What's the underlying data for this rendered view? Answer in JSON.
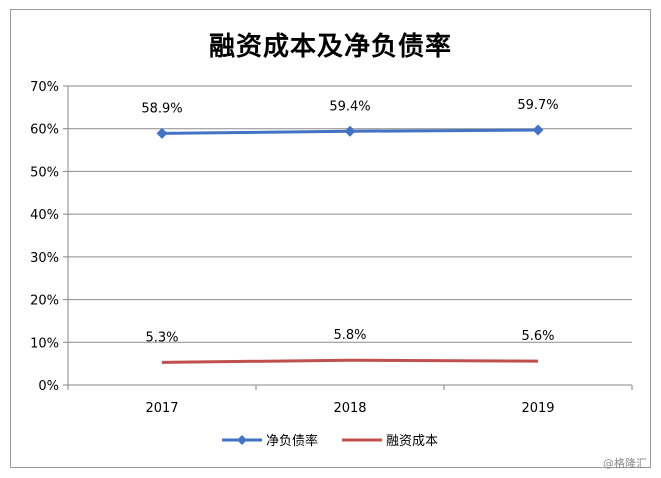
{
  "chart_data": {
    "type": "line",
    "title": "融资成本及净负债率",
    "categories": [
      "2017",
      "2018",
      "2019"
    ],
    "y_ticks": [
      "0%",
      "10%",
      "20%",
      "30%",
      "40%",
      "50%",
      "60%",
      "70%"
    ],
    "ylim": [
      0,
      70
    ],
    "grid": true,
    "legend_position": "bottom",
    "series": [
      {
        "name": "净负债率",
        "values": [
          58.9,
          59.4,
          59.7
        ],
        "labels": [
          "58.9%",
          "59.4%",
          "59.7%"
        ],
        "color": "#4472C4",
        "marker": "diamond"
      },
      {
        "name": "融资成本",
        "values": [
          5.3,
          5.8,
          5.6
        ],
        "labels": [
          "5.3%",
          "5.8%",
          "5.6%"
        ],
        "color": "#C0504D",
        "marker": "none"
      }
    ]
  },
  "watermark": "@格隆汇"
}
